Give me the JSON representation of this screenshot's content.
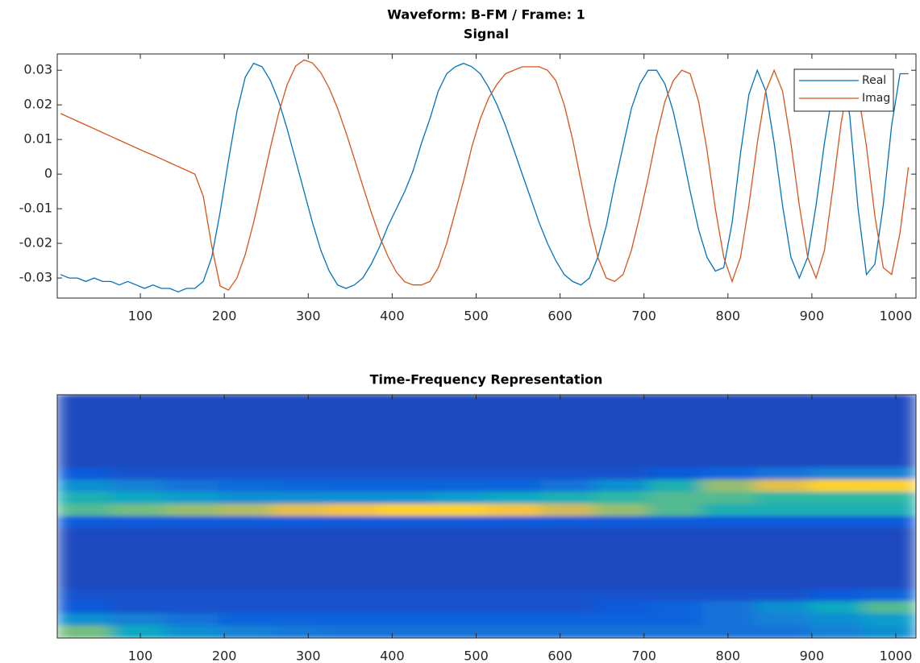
{
  "title": "Waveform: B-FM / Frame: 1",
  "chart_data": [
    {
      "type": "line",
      "title": "Signal",
      "x": [
        5,
        15,
        25,
        35,
        45,
        55,
        65,
        75,
        85,
        95,
        105,
        115,
        125,
        135,
        145,
        155,
        165,
        175,
        185,
        195,
        205,
        215,
        225,
        235,
        245,
        255,
        265,
        275,
        285,
        295,
        305,
        315,
        325,
        335,
        345,
        355,
        365,
        375,
        385,
        395,
        405,
        415,
        425,
        435,
        445,
        455,
        465,
        475,
        485,
        495,
        505,
        515,
        525,
        535,
        545,
        555,
        565,
        575,
        585,
        595,
        605,
        615,
        625,
        635,
        645,
        655,
        665,
        675,
        685,
        695,
        705,
        715,
        725,
        735,
        745,
        755,
        765,
        775,
        785,
        795,
        805,
        815,
        825,
        835,
        845,
        855,
        865,
        875,
        885,
        895,
        905,
        915,
        925,
        935,
        945,
        955,
        965,
        975,
        985,
        995,
        1005,
        1015
      ],
      "series": [
        {
          "name": "Real",
          "color": "#0072BD",
          "values": [
            -0.029,
            -0.03,
            -0.03,
            -0.031,
            -0.03,
            -0.031,
            -0.031,
            -0.032,
            -0.031,
            -0.032,
            -0.033,
            -0.032,
            -0.033,
            -0.033,
            -0.034,
            -0.033,
            -0.033,
            -0.031,
            -0.024,
            -0.011,
            0.004,
            0.018,
            0.028,
            0.032,
            0.031,
            0.027,
            0.021,
            0.013,
            0.004,
            -0.005,
            -0.014,
            -0.022,
            -0.028,
            -0.032,
            -0.033,
            -0.032,
            -0.03,
            -0.026,
            -0.021,
            -0.015,
            -0.01,
            -0.005,
            0.001,
            0.009,
            0.016,
            0.024,
            0.029,
            0.031,
            0.032,
            0.031,
            0.029,
            0.025,
            0.02,
            0.014,
            0.007,
            0.0,
            -0.007,
            -0.014,
            -0.02,
            -0.025,
            -0.029,
            -0.031,
            -0.032,
            -0.03,
            -0.024,
            -0.015,
            -0.003,
            0.008,
            0.019,
            0.026,
            0.03,
            0.03,
            0.026,
            0.018,
            0.007,
            -0.005,
            -0.016,
            -0.024,
            -0.028,
            -0.027,
            -0.014,
            0.006,
            0.023,
            0.03,
            0.024,
            0.009,
            -0.009,
            -0.024,
            -0.03,
            -0.024,
            -0.009,
            0.009,
            0.024,
            0.03,
            0.017,
            -0.01,
            -0.029,
            -0.026,
            -0.009,
            0.014,
            0.029,
            0.029
          ]
        },
        {
          "name": "Imag",
          "color": "#D95319",
          "values": [
            0.0175,
            0.0164,
            0.0153,
            0.0142,
            0.0131,
            0.012,
            0.0109,
            0.0098,
            0.0087,
            0.0076,
            0.0065,
            0.0055,
            0.0044,
            0.0033,
            0.0022,
            0.0011,
            0,
            -0.0064,
            -0.0208,
            -0.0323,
            -0.0335,
            -0.03,
            -0.0232,
            -0.0139,
            -0.0033,
            0.0077,
            0.0178,
            0.0259,
            0.0312,
            0.033,
            0.0321,
            0.0293,
            0.0248,
            0.019,
            0.012,
            0.0044,
            -0.0034,
            -0.011,
            -0.018,
            -0.0238,
            -0.0283,
            -0.0311,
            -0.032,
            -0.032,
            -0.031,
            -0.027,
            -0.02,
            -0.011,
            -0.002,
            0.008,
            0.016,
            0.022,
            0.026,
            0.029,
            0.03,
            0.031,
            0.031,
            0.031,
            0.03,
            0.027,
            0.02,
            0.01,
            -0.002,
            -0.014,
            -0.024,
            -0.03,
            -0.031,
            -0.029,
            -0.022,
            -0.012,
            -0.001,
            0.011,
            0.021,
            0.027,
            0.03,
            0.029,
            0.021,
            0.007,
            -0.01,
            -0.024,
            -0.031,
            -0.024,
            -0.009,
            0.009,
            0.024,
            0.03,
            0.024,
            0.009,
            -0.009,
            -0.024,
            -0.03,
            -0.022,
            -0.004,
            0.015,
            0.028,
            0.024,
            0.008,
            -0.012,
            -0.027,
            -0.029,
            -0.017,
            0.002
          ]
        }
      ],
      "xlim": [
        1,
        1024
      ],
      "xticks": [
        100,
        200,
        300,
        400,
        500,
        600,
        700,
        800,
        900,
        1000
      ],
      "ylim": [
        -0.0358,
        0.0347
      ],
      "yticks": [
        -0.03,
        -0.02,
        -0.01,
        0,
        0.01,
        0.02,
        0.03
      ],
      "grid": false,
      "legend": "top-right"
    },
    {
      "type": "heatmap",
      "title": "Time-Frequency Representation",
      "x_edges": [
        1,
        65,
        129,
        193,
        257,
        321,
        385,
        449,
        513,
        577,
        641,
        705,
        769,
        833,
        897,
        961,
        1024
      ],
      "xlim": [
        1,
        1024
      ],
      "xticks": [
        100,
        200,
        300,
        400,
        500,
        600,
        700,
        800,
        900,
        1000
      ],
      "colormap": "parula",
      "clim": [
        0,
        1
      ],
      "z": [
        [
          0.08,
          0.08,
          0.08,
          0.08,
          0.08,
          0.08,
          0.08,
          0.08,
          0.08,
          0.08,
          0.08,
          0.08,
          0.08,
          0.08,
          0.08,
          0.08
        ],
        [
          0.08,
          0.08,
          0.08,
          0.08,
          0.08,
          0.08,
          0.08,
          0.08,
          0.08,
          0.08,
          0.08,
          0.08,
          0.08,
          0.08,
          0.08,
          0.08
        ],
        [
          0.08,
          0.08,
          0.08,
          0.08,
          0.08,
          0.08,
          0.08,
          0.08,
          0.08,
          0.08,
          0.08,
          0.08,
          0.08,
          0.08,
          0.08,
          0.08
        ],
        [
          0.08,
          0.08,
          0.08,
          0.08,
          0.08,
          0.08,
          0.08,
          0.08,
          0.08,
          0.08,
          0.08,
          0.08,
          0.08,
          0.08,
          0.08,
          0.08
        ],
        [
          0.08,
          0.08,
          0.08,
          0.08,
          0.08,
          0.08,
          0.08,
          0.08,
          0.08,
          0.08,
          0.08,
          0.08,
          0.08,
          0.08,
          0.08,
          0.08
        ],
        [
          0.08,
          0.08,
          0.08,
          0.08,
          0.08,
          0.08,
          0.08,
          0.08,
          0.08,
          0.08,
          0.08,
          0.08,
          0.08,
          0.08,
          0.08,
          0.08
        ],
        [
          0.12,
          0.1,
          0.1,
          0.1,
          0.1,
          0.1,
          0.1,
          0.1,
          0.1,
          0.1,
          0.1,
          0.12,
          0.15,
          0.2,
          0.25,
          0.25
        ],
        [
          0.3,
          0.25,
          0.2,
          0.18,
          0.16,
          0.15,
          0.15,
          0.15,
          0.15,
          0.2,
          0.3,
          0.45,
          0.65,
          0.8,
          0.9,
          0.9
        ],
        [
          0.45,
          0.4,
          0.35,
          0.3,
          0.3,
          0.3,
          0.3,
          0.35,
          0.4,
          0.45,
          0.5,
          0.55,
          0.55,
          0.5,
          0.5,
          0.5
        ],
        [
          0.55,
          0.6,
          0.65,
          0.7,
          0.8,
          0.85,
          0.9,
          0.9,
          0.85,
          0.75,
          0.65,
          0.55,
          0.45,
          0.45,
          0.45,
          0.45
        ],
        [
          0.12,
          0.12,
          0.12,
          0.12,
          0.12,
          0.12,
          0.12,
          0.12,
          0.12,
          0.12,
          0.12,
          0.12,
          0.12,
          0.12,
          0.12,
          0.12
        ],
        [
          0.08,
          0.08,
          0.08,
          0.08,
          0.08,
          0.08,
          0.08,
          0.08,
          0.08,
          0.08,
          0.08,
          0.08,
          0.08,
          0.08,
          0.08,
          0.08
        ],
        [
          0.08,
          0.08,
          0.08,
          0.08,
          0.08,
          0.08,
          0.08,
          0.08,
          0.08,
          0.08,
          0.08,
          0.08,
          0.08,
          0.08,
          0.08,
          0.08
        ],
        [
          0.08,
          0.08,
          0.08,
          0.08,
          0.08,
          0.08,
          0.08,
          0.08,
          0.08,
          0.08,
          0.08,
          0.08,
          0.08,
          0.08,
          0.08,
          0.08
        ],
        [
          0.08,
          0.08,
          0.08,
          0.08,
          0.08,
          0.08,
          0.08,
          0.08,
          0.08,
          0.08,
          0.08,
          0.08,
          0.08,
          0.08,
          0.08,
          0.08
        ],
        [
          0.08,
          0.08,
          0.08,
          0.08,
          0.08,
          0.08,
          0.08,
          0.08,
          0.08,
          0.08,
          0.08,
          0.08,
          0.08,
          0.08,
          0.08,
          0.08
        ],
        [
          0.1,
          0.1,
          0.1,
          0.1,
          0.1,
          0.1,
          0.1,
          0.1,
          0.1,
          0.1,
          0.1,
          0.1,
          0.1,
          0.1,
          0.12,
          0.15
        ],
        [
          0.12,
          0.1,
          0.1,
          0.1,
          0.1,
          0.1,
          0.1,
          0.1,
          0.1,
          0.1,
          0.12,
          0.15,
          0.2,
          0.3,
          0.4,
          0.55
        ],
        [
          0.3,
          0.25,
          0.2,
          0.15,
          0.15,
          0.15,
          0.15,
          0.15,
          0.15,
          0.15,
          0.15,
          0.15,
          0.2,
          0.25,
          0.3,
          0.35
        ],
        [
          0.6,
          0.4,
          0.3,
          0.25,
          0.22,
          0.2,
          0.2,
          0.2,
          0.2,
          0.2,
          0.2,
          0.2,
          0.2,
          0.2,
          0.25,
          0.3
        ]
      ]
    }
  ]
}
